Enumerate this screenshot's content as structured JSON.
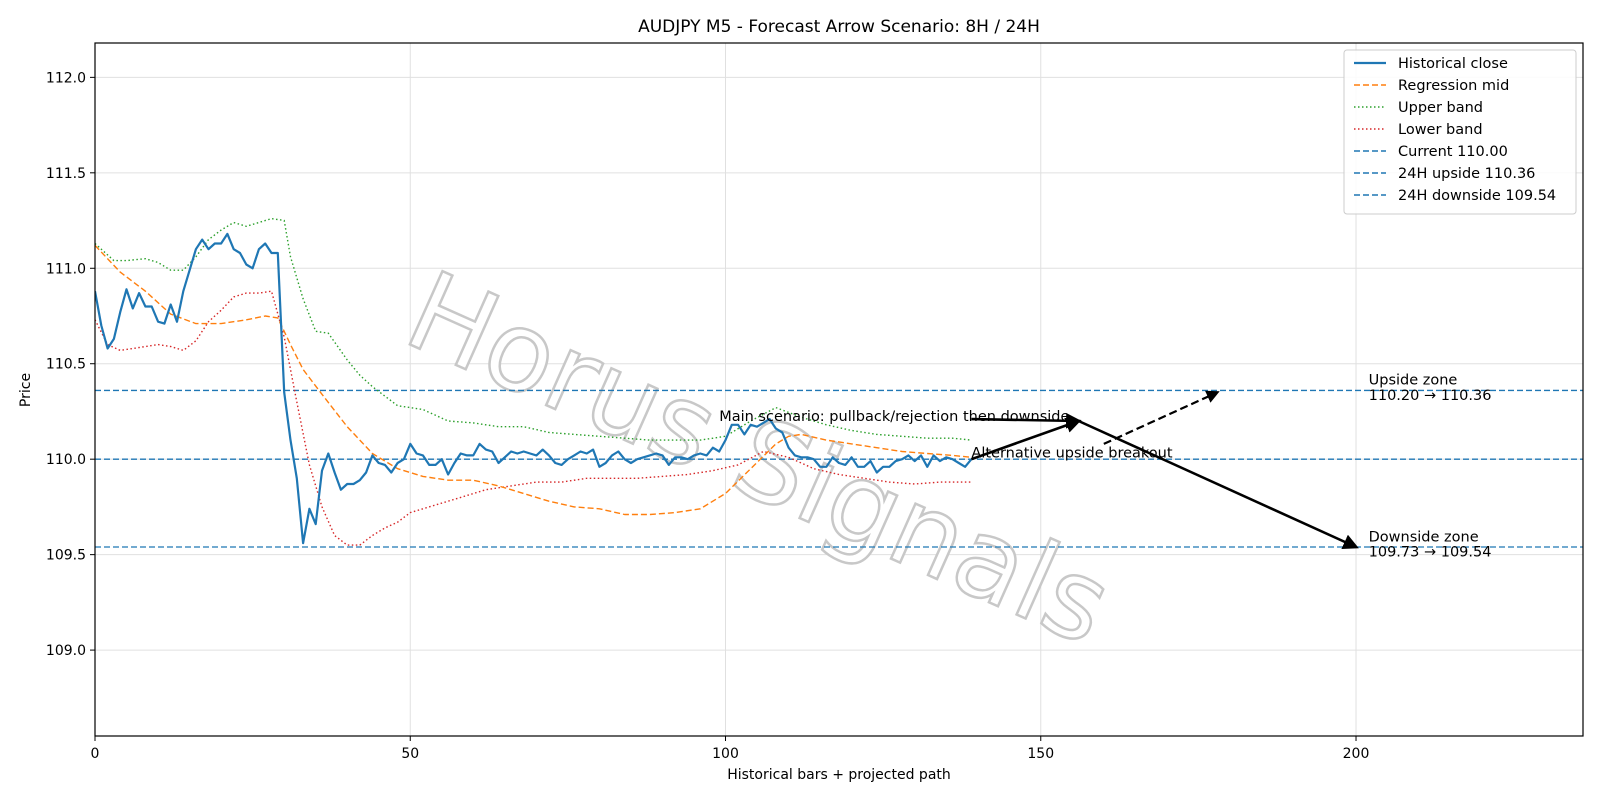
{
  "chart_data": {
    "type": "line",
    "title": "AUDJPY M5 - Forecast Arrow Scenario: 8H / 24H",
    "xlabel": "Historical bars + projected path",
    "ylabel": "Price",
    "xlim": [
      0,
      236
    ],
    "ylim": [
      108.55,
      112.18
    ],
    "xticks": [
      "0",
      "50",
      "100",
      "150",
      "200"
    ],
    "yticks": [
      "109.0",
      "109.5",
      "110.0",
      "110.5",
      "111.0",
      "111.5",
      "112.0"
    ],
    "grid": true,
    "legend_position": "top-right",
    "series": [
      {
        "name": "Historical close",
        "color": "#1f77b4",
        "style": "solid",
        "points": [
          [
            0,
            110.88
          ],
          [
            1,
            110.7
          ],
          [
            2,
            110.58
          ],
          [
            3,
            110.63
          ],
          [
            4,
            110.77
          ],
          [
            5,
            110.89
          ],
          [
            6,
            110.79
          ],
          [
            7,
            110.87
          ],
          [
            8,
            110.8
          ],
          [
            9,
            110.8
          ],
          [
            10,
            110.72
          ],
          [
            11,
            110.71
          ],
          [
            12,
            110.81
          ],
          [
            13,
            110.72
          ],
          [
            14,
            110.88
          ],
          [
            15,
            110.99
          ],
          [
            16,
            111.1
          ],
          [
            17,
            111.15
          ],
          [
            18,
            111.1
          ],
          [
            19,
            111.13
          ],
          [
            20,
            111.13
          ],
          [
            21,
            111.18
          ],
          [
            22,
            111.1
          ],
          [
            23,
            111.08
          ],
          [
            24,
            111.02
          ],
          [
            25,
            111.0
          ],
          [
            26,
            111.1
          ],
          [
            27,
            111.13
          ],
          [
            28,
            111.08
          ],
          [
            29,
            111.08
          ],
          [
            30,
            110.35
          ],
          [
            31,
            110.1
          ],
          [
            32,
            109.9
          ],
          [
            33,
            109.56
          ],
          [
            34,
            109.74
          ],
          [
            35,
            109.66
          ],
          [
            36,
            109.94
          ],
          [
            37,
            110.03
          ],
          [
            38,
            109.93
          ],
          [
            39,
            109.84
          ],
          [
            40,
            109.87
          ],
          [
            41,
            109.87
          ],
          [
            42,
            109.89
          ],
          [
            43,
            109.93
          ],
          [
            44,
            110.02
          ],
          [
            45,
            109.98
          ],
          [
            46,
            109.97
          ],
          [
            47,
            109.93
          ],
          [
            48,
            109.98
          ],
          [
            49,
            110.0
          ],
          [
            50,
            110.08
          ],
          [
            51,
            110.03
          ],
          [
            52,
            110.02
          ],
          [
            53,
            109.97
          ],
          [
            54,
            109.97
          ],
          [
            55,
            110.0
          ],
          [
            56,
            109.92
          ],
          [
            57,
            109.98
          ],
          [
            58,
            110.03
          ],
          [
            59,
            110.02
          ],
          [
            60,
            110.02
          ],
          [
            61,
            110.08
          ],
          [
            62,
            110.05
          ],
          [
            63,
            110.04
          ],
          [
            64,
            109.98
          ],
          [
            65,
            110.01
          ],
          [
            66,
            110.04
          ],
          [
            67,
            110.03
          ],
          [
            68,
            110.04
          ],
          [
            69,
            110.03
          ],
          [
            70,
            110.02
          ],
          [
            71,
            110.05
          ],
          [
            72,
            110.02
          ],
          [
            73,
            109.98
          ],
          [
            74,
            109.97
          ],
          [
            75,
            110.0
          ],
          [
            76,
            110.02
          ],
          [
            77,
            110.04
          ],
          [
            78,
            110.03
          ],
          [
            79,
            110.05
          ],
          [
            80,
            109.96
          ],
          [
            81,
            109.98
          ],
          [
            82,
            110.02
          ],
          [
            83,
            110.04
          ],
          [
            84,
            110.0
          ],
          [
            85,
            109.98
          ],
          [
            86,
            110.0
          ],
          [
            87,
            110.01
          ],
          [
            88,
            110.02
          ],
          [
            89,
            110.03
          ],
          [
            90,
            110.02
          ],
          [
            91,
            109.97
          ],
          [
            92,
            110.01
          ],
          [
            93,
            110.01
          ],
          [
            94,
            110.0
          ],
          [
            95,
            110.02
          ],
          [
            96,
            110.03
          ],
          [
            97,
            110.02
          ],
          [
            98,
            110.06
          ],
          [
            99,
            110.04
          ],
          [
            100,
            110.1
          ],
          [
            101,
            110.18
          ],
          [
            102,
            110.18
          ],
          [
            103,
            110.13
          ],
          [
            104,
            110.18
          ],
          [
            105,
            110.17
          ],
          [
            106,
            110.19
          ],
          [
            107,
            110.21
          ],
          [
            108,
            110.16
          ],
          [
            109,
            110.14
          ],
          [
            110,
            110.06
          ],
          [
            111,
            110.02
          ],
          [
            112,
            110.01
          ],
          [
            113,
            110.01
          ],
          [
            114,
            110.0
          ],
          [
            115,
            109.96
          ],
          [
            116,
            109.96
          ],
          [
            117,
            110.01
          ],
          [
            118,
            109.98
          ],
          [
            119,
            109.97
          ],
          [
            120,
            110.01
          ],
          [
            121,
            109.96
          ],
          [
            122,
            109.96
          ],
          [
            123,
            109.99
          ],
          [
            124,
            109.93
          ],
          [
            125,
            109.96
          ],
          [
            126,
            109.96
          ],
          [
            127,
            109.99
          ],
          [
            128,
            110.0
          ],
          [
            129,
            110.02
          ],
          [
            130,
            109.99
          ],
          [
            131,
            110.02
          ],
          [
            132,
            109.96
          ],
          [
            133,
            110.02
          ],
          [
            134,
            109.99
          ],
          [
            135,
            110.01
          ],
          [
            136,
            110.0
          ],
          [
            137,
            109.98
          ],
          [
            138,
            109.96
          ],
          [
            139,
            110.0
          ]
        ]
      },
      {
        "name": "Regression mid",
        "color": "#ff7f0e",
        "style": "dashed",
        "points": [
          [
            0,
            111.12
          ],
          [
            4,
            110.98
          ],
          [
            8,
            110.88
          ],
          [
            12,
            110.76
          ],
          [
            16,
            110.71
          ],
          [
            20,
            110.71
          ],
          [
            24,
            110.73
          ],
          [
            27,
            110.75
          ],
          [
            29,
            110.74
          ],
          [
            31,
            110.6
          ],
          [
            33,
            110.47
          ],
          [
            36,
            110.34
          ],
          [
            40,
            110.17
          ],
          [
            44,
            110.03
          ],
          [
            48,
            109.95
          ],
          [
            52,
            109.91
          ],
          [
            56,
            109.89
          ],
          [
            60,
            109.89
          ],
          [
            64,
            109.86
          ],
          [
            68,
            109.82
          ],
          [
            72,
            109.78
          ],
          [
            76,
            109.75
          ],
          [
            80,
            109.74
          ],
          [
            84,
            109.71
          ],
          [
            88,
            109.71
          ],
          [
            92,
            109.72
          ],
          [
            96,
            109.74
          ],
          [
            100,
            109.82
          ],
          [
            104,
            109.95
          ],
          [
            108,
            110.08
          ],
          [
            110,
            110.12
          ],
          [
            112,
            110.13
          ],
          [
            116,
            110.1
          ],
          [
            120,
            110.08
          ],
          [
            124,
            110.06
          ],
          [
            128,
            110.04
          ],
          [
            132,
            110.03
          ],
          [
            136,
            110.02
          ],
          [
            139,
            110.01
          ]
        ]
      },
      {
        "name": "Upper band",
        "color": "#2ca02c",
        "style": "dotted",
        "points": [
          [
            0,
            111.13
          ],
          [
            3,
            111.04
          ],
          [
            5,
            111.04
          ],
          [
            8,
            111.05
          ],
          [
            10,
            111.03
          ],
          [
            12,
            110.99
          ],
          [
            14,
            110.99
          ],
          [
            16,
            111.06
          ],
          [
            18,
            111.15
          ],
          [
            20,
            111.2
          ],
          [
            22,
            111.24
          ],
          [
            24,
            111.22
          ],
          [
            26,
            111.24
          ],
          [
            28,
            111.26
          ],
          [
            30,
            111.25
          ],
          [
            31,
            111.06
          ],
          [
            33,
            110.84
          ],
          [
            35,
            110.67
          ],
          [
            37,
            110.66
          ],
          [
            40,
            110.52
          ],
          [
            42,
            110.44
          ],
          [
            44,
            110.38
          ],
          [
            46,
            110.33
          ],
          [
            48,
            110.28
          ],
          [
            52,
            110.26
          ],
          [
            56,
            110.2
          ],
          [
            60,
            110.19
          ],
          [
            64,
            110.17
          ],
          [
            68,
            110.17
          ],
          [
            72,
            110.14
          ],
          [
            76,
            110.13
          ],
          [
            80,
            110.12
          ],
          [
            84,
            110.11
          ],
          [
            88,
            110.1
          ],
          [
            92,
            110.1
          ],
          [
            96,
            110.1
          ],
          [
            100,
            110.12
          ],
          [
            104,
            110.2
          ],
          [
            108,
            110.27
          ],
          [
            112,
            110.22
          ],
          [
            116,
            110.18
          ],
          [
            120,
            110.15
          ],
          [
            124,
            110.13
          ],
          [
            128,
            110.12
          ],
          [
            132,
            110.11
          ],
          [
            136,
            110.11
          ],
          [
            139,
            110.1
          ]
        ]
      },
      {
        "name": "Lower band",
        "color": "#d62728",
        "style": "dotted",
        "points": [
          [
            0,
            110.73
          ],
          [
            2,
            110.6
          ],
          [
            4,
            110.57
          ],
          [
            6,
            110.58
          ],
          [
            8,
            110.59
          ],
          [
            10,
            110.6
          ],
          [
            12,
            110.59
          ],
          [
            14,
            110.57
          ],
          [
            16,
            110.62
          ],
          [
            18,
            110.72
          ],
          [
            20,
            110.78
          ],
          [
            22,
            110.85
          ],
          [
            24,
            110.87
          ],
          [
            26,
            110.87
          ],
          [
            28,
            110.88
          ],
          [
            30,
            110.64
          ],
          [
            32,
            110.3
          ],
          [
            34,
            109.97
          ],
          [
            36,
            109.75
          ],
          [
            38,
            109.6
          ],
          [
            40,
            109.55
          ],
          [
            42,
            109.55
          ],
          [
            44,
            109.6
          ],
          [
            46,
            109.64
          ],
          [
            48,
            109.67
          ],
          [
            50,
            109.72
          ],
          [
            54,
            109.76
          ],
          [
            58,
            109.8
          ],
          [
            62,
            109.84
          ],
          [
            66,
            109.86
          ],
          [
            70,
            109.88
          ],
          [
            74,
            109.88
          ],
          [
            78,
            109.9
          ],
          [
            82,
            109.9
          ],
          [
            86,
            109.9
          ],
          [
            90,
            109.91
          ],
          [
            94,
            109.92
          ],
          [
            98,
            109.94
          ],
          [
            102,
            109.97
          ],
          [
            106,
            110.04
          ],
          [
            110,
            110.01
          ],
          [
            114,
            109.95
          ],
          [
            118,
            109.92
          ],
          [
            122,
            109.9
          ],
          [
            126,
            109.88
          ],
          [
            130,
            109.87
          ],
          [
            134,
            109.88
          ],
          [
            139,
            109.88
          ]
        ]
      }
    ],
    "reference_lines": [
      {
        "label": "Current 110.00",
        "value": 110.0,
        "color": "#1f77b4"
      },
      {
        "label": "24H upside 110.36",
        "value": 110.36,
        "color": "#1f77b4"
      },
      {
        "label": "24H downside 109.54",
        "value": 109.54,
        "color": "#1f77b4"
      }
    ],
    "arrows": [
      {
        "from": [
          139,
          110.0
        ],
        "to": [
          156,
          110.2
        ],
        "style": "solid"
      },
      {
        "from": [
          156,
          110.2
        ],
        "to": [
          200,
          109.54
        ],
        "style": "solid"
      },
      {
        "from": [
          160,
          110.08
        ],
        "to": [
          178,
          110.35
        ],
        "style": "dashed"
      },
      {
        "from": [
          139,
          110.21
        ],
        "to": [
          156,
          110.2
        ],
        "style": "solid"
      }
    ],
    "annotations": [
      {
        "text": "Main scenario: pullback/rejection then downside",
        "x": 99,
        "y": 110.2
      },
      {
        "text": "Alternative upside breakout",
        "x": 139,
        "y": 110.01
      },
      {
        "text": "Upside zone",
        "x": 202,
        "y": 110.39
      },
      {
        "text": "110.20 → 110.36",
        "x": 202,
        "y": 110.31
      },
      {
        "text": "Downside zone",
        "x": 202,
        "y": 109.57
      },
      {
        "text": "109.73 → 109.54",
        "x": 202,
        "y": 109.49
      }
    ]
  },
  "watermark": "Horus Signals"
}
